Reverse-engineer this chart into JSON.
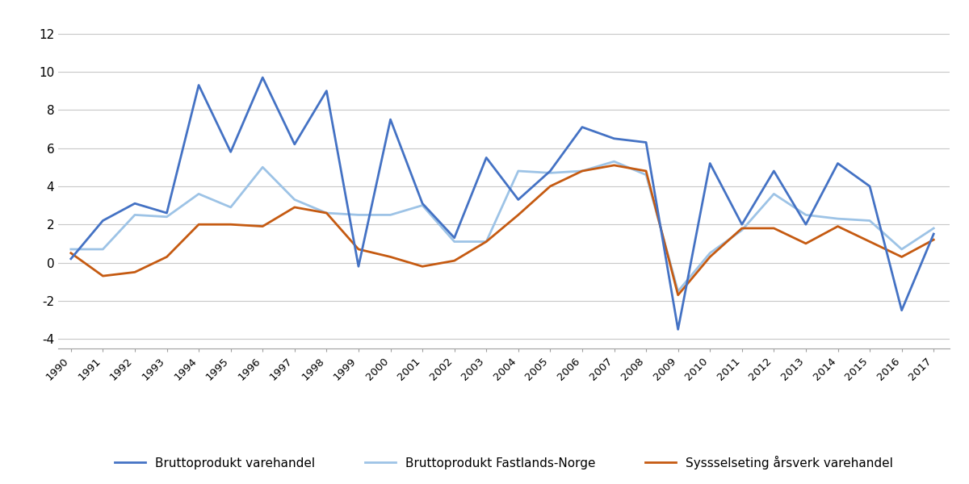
{
  "years": [
    1990,
    1991,
    1992,
    1993,
    1994,
    1995,
    1996,
    1997,
    1998,
    1999,
    2000,
    2001,
    2002,
    2003,
    2004,
    2005,
    2006,
    2007,
    2008,
    2009,
    2010,
    2011,
    2012,
    2013,
    2014,
    2015,
    2016,
    2017
  ],
  "bruttoprodukt_varehandel": [
    0.2,
    2.2,
    3.1,
    2.6,
    9.3,
    5.8,
    9.7,
    6.2,
    9.0,
    -0.2,
    7.5,
    3.1,
    1.3,
    5.5,
    3.3,
    4.8,
    7.1,
    6.5,
    6.3,
    -3.5,
    5.2,
    2.0,
    4.8,
    2.0,
    5.2,
    4.0,
    -2.5,
    1.5
  ],
  "bruttoprodukt_fastlands": [
    0.7,
    0.7,
    2.5,
    2.4,
    3.6,
    2.9,
    5.0,
    3.3,
    2.6,
    2.5,
    2.5,
    3.0,
    1.1,
    1.1,
    4.8,
    4.7,
    4.8,
    5.3,
    4.6,
    -1.5,
    0.5,
    1.7,
    3.6,
    2.5,
    2.3,
    2.2,
    0.7,
    1.8
  ],
  "sysselseting_arsverk": [
    0.5,
    -0.7,
    -0.5,
    0.3,
    2.0,
    2.0,
    1.9,
    2.9,
    2.6,
    0.7,
    0.3,
    -0.2,
    0.1,
    1.1,
    2.5,
    4.0,
    4.8,
    5.1,
    4.8,
    -1.7,
    0.3,
    1.8,
    1.8,
    1.0,
    1.9,
    1.1,
    0.3,
    1.2
  ],
  "line_colors": {
    "bruttoprodukt_varehandel": "#4472C4",
    "bruttoprodukt_fastlands": "#9DC3E6",
    "sysselseting_arsverk": "#C55A11"
  },
  "legend_labels": {
    "bruttoprodukt_varehandel": "Bruttoprodukt varehandel",
    "bruttoprodukt_fastlands": "Bruttoprodukt Fastlands-Norge",
    "sysselseting_arsverk": "Syssselseting årsverk varehandel"
  },
  "ylim": [
    -4.5,
    13
  ],
  "yticks": [
    -4,
    -2,
    0,
    2,
    4,
    6,
    8,
    10,
    12
  ],
  "line_width": 2.0,
  "background_color": "#ffffff",
  "grid_color": "#c8c8c8"
}
